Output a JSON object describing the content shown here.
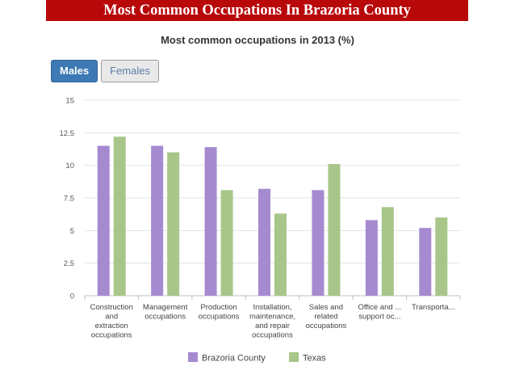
{
  "banner": {
    "title": "Most Common Occupations In Brazoria County"
  },
  "toggle": {
    "males_label": "Males",
    "females_label": "Females",
    "selected": "Males"
  },
  "chart_data": {
    "type": "bar",
    "title": "Most common occupations in 2013 (%)",
    "categories": [
      [
        "Construction",
        "and",
        "extraction",
        "occupations"
      ],
      [
        "Management",
        "occupations"
      ],
      [
        "Production",
        "occupations"
      ],
      [
        "Installation,",
        "maintenance,",
        "and repair",
        "occupations"
      ],
      [
        "Sales and",
        "related",
        "occupations"
      ],
      [
        "Office and ...",
        "support oc..."
      ],
      [
        "Transporta..."
      ]
    ],
    "series": [
      {
        "name": "Brazoria County",
        "color": "#a68ad0",
        "values": [
          11.5,
          11.5,
          11.4,
          8.2,
          8.1,
          5.8,
          5.2
        ]
      },
      {
        "name": "Texas",
        "color": "#a8c68a",
        "values": [
          12.2,
          11.0,
          8.1,
          6.3,
          10.1,
          6.8,
          6.0
        ]
      }
    ],
    "ylim": [
      0,
      15
    ],
    "yticks": [
      "0",
      "2.5",
      "5",
      "7.5",
      "10",
      "12.5",
      "15"
    ],
    "grid": true,
    "legend": "bottom"
  }
}
